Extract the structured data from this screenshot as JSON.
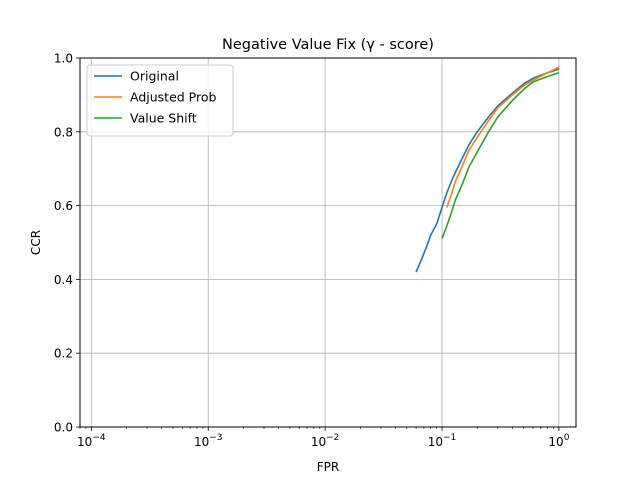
{
  "chart_data": {
    "type": "line",
    "title": "Negative Value Fix (γ - score)",
    "xlabel": "FPR",
    "ylabel": "CCR",
    "xscale": "log",
    "xlim": [
      8e-05,
      1.4
    ],
    "ylim": [
      0.0,
      1.0
    ],
    "grid": true,
    "legend_position": "top-left",
    "xticks": [
      {
        "value": 0.0001,
        "base": "10",
        "exp": "−4"
      },
      {
        "value": 0.001,
        "base": "10",
        "exp": "−3"
      },
      {
        "value": 0.01,
        "base": "10",
        "exp": "−2"
      },
      {
        "value": 0.1,
        "base": "10",
        "exp": "−1"
      },
      {
        "value": 1,
        "base": "10",
        "exp": "0"
      }
    ],
    "yticks": [
      "0.0",
      "0.2",
      "0.4",
      "0.6",
      "0.8",
      "1.0"
    ],
    "series": [
      {
        "name": "Original",
        "color": "#1f77b4",
        "points": [
          [
            0.06,
            0.42
          ],
          [
            0.065,
            0.445
          ],
          [
            0.07,
            0.47
          ],
          [
            0.075,
            0.495
          ],
          [
            0.08,
            0.52
          ],
          [
            0.09,
            0.55
          ],
          [
            0.1,
            0.595
          ],
          [
            0.11,
            0.635
          ],
          [
            0.12,
            0.665
          ],
          [
            0.13,
            0.69
          ],
          [
            0.15,
            0.73
          ],
          [
            0.17,
            0.765
          ],
          [
            0.2,
            0.8
          ],
          [
            0.25,
            0.84
          ],
          [
            0.3,
            0.87
          ],
          [
            0.4,
            0.905
          ],
          [
            0.5,
            0.93
          ],
          [
            0.6,
            0.945
          ],
          [
            0.8,
            0.96
          ],
          [
            1.0,
            0.97
          ]
        ]
      },
      {
        "name": "Adjusted Prob",
        "color": "#ff7f0e",
        "points": [
          [
            0.11,
            0.595
          ],
          [
            0.12,
            0.63
          ],
          [
            0.13,
            0.665
          ],
          [
            0.15,
            0.71
          ],
          [
            0.17,
            0.75
          ],
          [
            0.2,
            0.785
          ],
          [
            0.25,
            0.83
          ],
          [
            0.3,
            0.865
          ],
          [
            0.4,
            0.9
          ],
          [
            0.5,
            0.925
          ],
          [
            0.6,
            0.94
          ],
          [
            0.8,
            0.96
          ],
          [
            1.0,
            0.975
          ]
        ]
      },
      {
        "name": "Value Shift",
        "color": "#2ca02c",
        "points": [
          [
            0.1,
            0.51
          ],
          [
            0.11,
            0.545
          ],
          [
            0.12,
            0.58
          ],
          [
            0.13,
            0.615
          ],
          [
            0.15,
            0.66
          ],
          [
            0.17,
            0.705
          ],
          [
            0.2,
            0.745
          ],
          [
            0.25,
            0.8
          ],
          [
            0.3,
            0.84
          ],
          [
            0.4,
            0.885
          ],
          [
            0.5,
            0.915
          ],
          [
            0.6,
            0.935
          ],
          [
            0.8,
            0.95
          ],
          [
            1.0,
            0.96
          ]
        ]
      }
    ]
  }
}
